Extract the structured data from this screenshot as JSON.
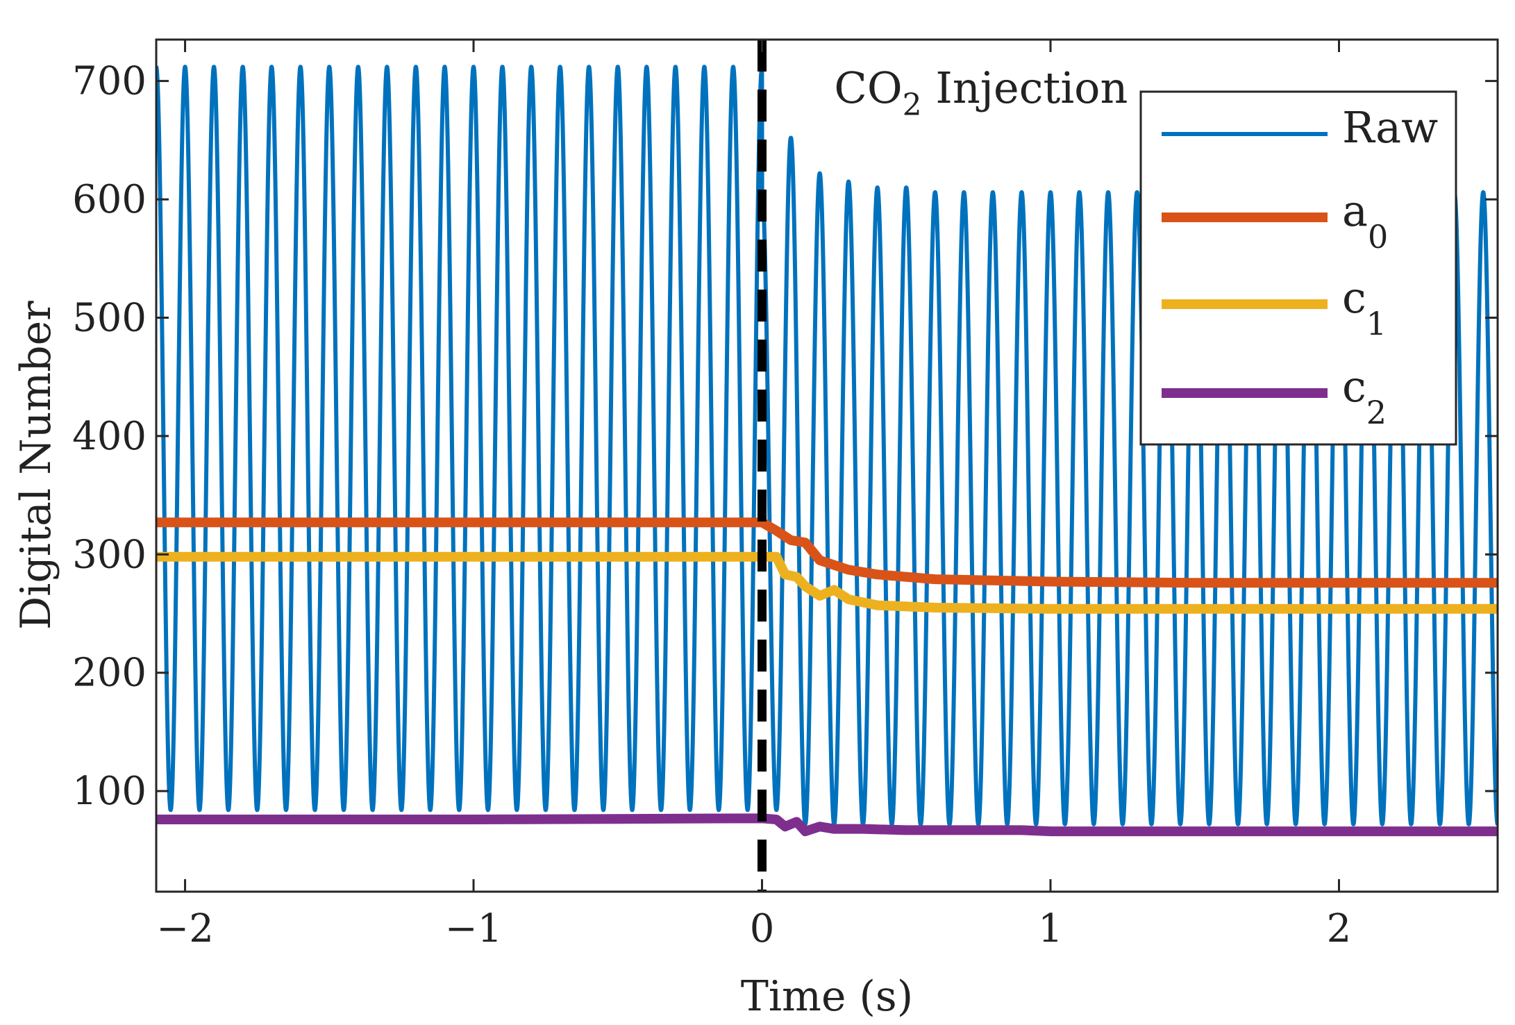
{
  "chart_data": {
    "type": "line",
    "title": "",
    "xlabel": "Time (s)",
    "ylabel": "Digital Number",
    "xlim": [
      -2.1,
      2.55
    ],
    "ylim": [
      15,
      735
    ],
    "x_ticks": [
      -2,
      -1,
      0,
      1,
      2
    ],
    "x_tick_labels": [
      "−2",
      "−1",
      "0",
      "1",
      "2"
    ],
    "y_ticks": [
      100,
      200,
      300,
      400,
      500,
      600,
      700
    ],
    "y_tick_labels": [
      "100",
      "200",
      "300",
      "400",
      "500",
      "600",
      "700"
    ],
    "grid": false,
    "legend_position": "top-right",
    "annotation": {
      "text_main": "CO",
      "text_sub": "2",
      "text_rest": " Injection",
      "x": 0.25
    },
    "event_line": {
      "x": 0,
      "style": "dashed",
      "color": "#000000"
    },
    "series": [
      {
        "name": "Raw",
        "legend_main": "Raw",
        "legend_sub": "",
        "color": "#0072BD",
        "kind": "oscillation",
        "frequency_hz": 10,
        "baseline_min": 82,
        "pre_max": 712,
        "pre_min": 84,
        "post_max": 606,
        "post_min": 72,
        "first_post_max": 652,
        "transition_peaks": [
          {
            "t": 0.25,
            "max": 622
          },
          {
            "t": 0.35,
            "max": 615
          },
          {
            "t": 0.45,
            "max": 610
          }
        ]
      },
      {
        "name": "a0",
        "legend_main": "a",
        "legend_sub": "0",
        "color": "#D95319",
        "kind": "step",
        "points": [
          [
            -2.1,
            327
          ],
          [
            0.0,
            327
          ],
          [
            0.05,
            320
          ],
          [
            0.1,
            312
          ],
          [
            0.15,
            310
          ],
          [
            0.2,
            295
          ],
          [
            0.3,
            287
          ],
          [
            0.4,
            283
          ],
          [
            0.6,
            279
          ],
          [
            1.0,
            277
          ],
          [
            1.5,
            276
          ],
          [
            2.55,
            276
          ]
        ]
      },
      {
        "name": "c1",
        "legend_main": "c",
        "legend_sub": "1",
        "color": "#EDB120",
        "kind": "step",
        "points": [
          [
            -2.1,
            298
          ],
          [
            0.0,
            298
          ],
          [
            0.05,
            298
          ],
          [
            0.08,
            283
          ],
          [
            0.12,
            281
          ],
          [
            0.15,
            273
          ],
          [
            0.2,
            265
          ],
          [
            0.25,
            270
          ],
          [
            0.3,
            262
          ],
          [
            0.4,
            257
          ],
          [
            0.6,
            255
          ],
          [
            1.0,
            254
          ],
          [
            2.55,
            254
          ]
        ]
      },
      {
        "name": "c2",
        "legend_main": "c",
        "legend_sub": "2",
        "color": "#7E2F8E",
        "kind": "step",
        "points": [
          [
            -2.1,
            76
          ],
          [
            -1.0,
            76
          ],
          [
            0.0,
            77
          ],
          [
            0.05,
            76
          ],
          [
            0.08,
            70
          ],
          [
            0.12,
            74
          ],
          [
            0.15,
            66
          ],
          [
            0.2,
            70
          ],
          [
            0.25,
            68
          ],
          [
            0.35,
            68
          ],
          [
            0.5,
            67
          ],
          [
            0.9,
            67
          ],
          [
            1.0,
            66
          ],
          [
            2.55,
            66
          ]
        ]
      }
    ]
  }
}
